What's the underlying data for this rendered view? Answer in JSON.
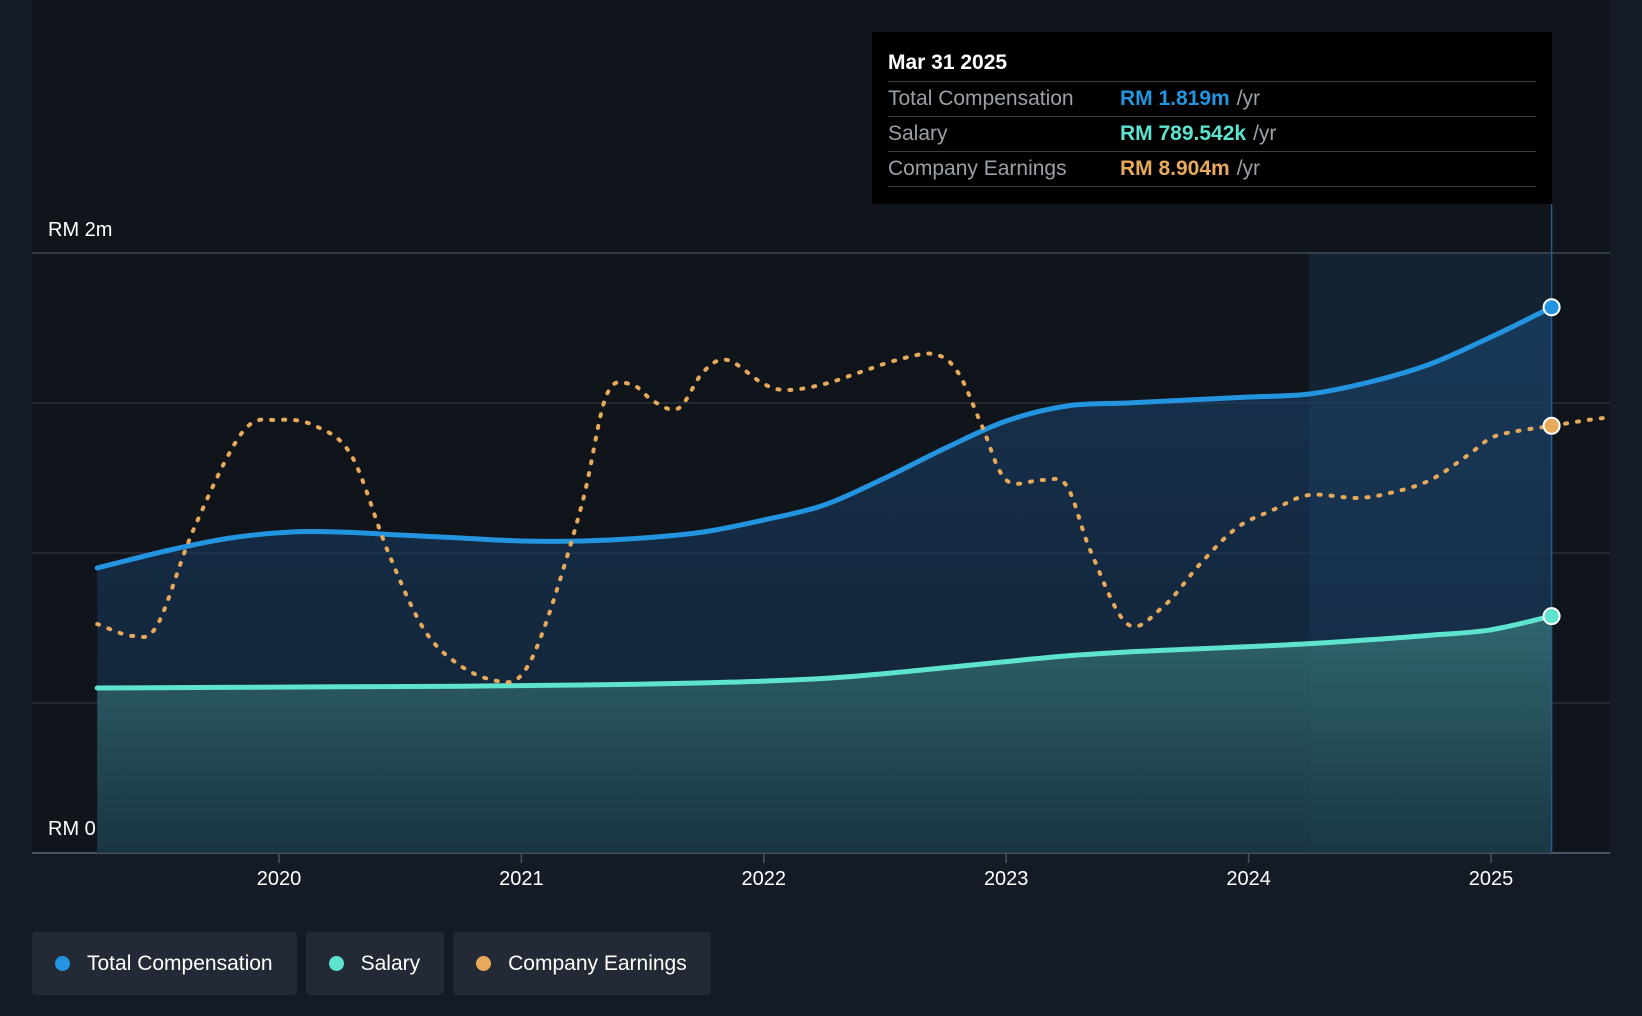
{
  "chart_data": {
    "type": "line",
    "title": "",
    "xlabel": "",
    "ylabel": "",
    "currency_prefix": "RM",
    "y_axis_labels": [
      "RM 2m",
      "RM 0"
    ],
    "ylim": [
      0,
      2.0
    ],
    "x_ticks": [
      2020,
      2021,
      2022,
      2023,
      2024,
      2025
    ],
    "xlim": [
      2019.25,
      2025.5
    ],
    "grid": true,
    "series": [
      {
        "name": "Total Compensation",
        "color": "#2394df",
        "style": "solid-area",
        "unit": "RM m",
        "x": [
          2019.25,
          2019.55,
          2019.8,
          2020.05,
          2020.25,
          2020.5,
          2020.75,
          2021.0,
          2021.25,
          2021.5,
          2021.75,
          2022.0,
          2022.25,
          2022.5,
          2022.75,
          2023.0,
          2023.25,
          2023.5,
          2023.75,
          2024.0,
          2024.25,
          2024.5,
          2024.75,
          2025.0,
          2025.25
        ],
        "values": [
          0.95,
          1.01,
          1.05,
          1.07,
          1.07,
          1.06,
          1.05,
          1.04,
          1.04,
          1.05,
          1.07,
          1.11,
          1.16,
          1.25,
          1.35,
          1.44,
          1.49,
          1.5,
          1.51,
          1.52,
          1.53,
          1.57,
          1.63,
          1.72,
          1.819
        ]
      },
      {
        "name": "Salary",
        "color": "#5ee3cf",
        "style": "solid-area",
        "unit": "RM k",
        "x": [
          2019.25,
          2019.75,
          2020.25,
          2020.75,
          2021.0,
          2021.25,
          2021.5,
          2021.75,
          2022.0,
          2022.25,
          2022.5,
          2022.75,
          2023.0,
          2023.25,
          2023.5,
          2023.75,
          2024.0,
          2024.25,
          2024.5,
          2024.75,
          2025.0,
          2025.25
        ],
        "values": [
          550,
          552,
          554,
          556,
          558,
          560,
          563,
          567,
          573,
          582,
          598,
          618,
          638,
          657,
          670,
          679,
          688,
          698,
          711,
          726,
          744,
          789.542
        ]
      },
      {
        "name": "Company Earnings",
        "color": "#e7a95a",
        "style": "dotted",
        "unit": "RM m",
        "x": [
          2019.25,
          2019.4,
          2019.5,
          2019.65,
          2019.85,
          2020.0,
          2020.15,
          2020.3,
          2020.45,
          2020.6,
          2020.75,
          2020.9,
          2021.0,
          2021.1,
          2021.25,
          2021.35,
          2021.45,
          2021.55,
          2021.65,
          2021.75,
          2021.85,
          2022.0,
          2022.1,
          2022.25,
          2022.4,
          2022.55,
          2022.7,
          2022.8,
          2022.9,
          2023.0,
          2023.15,
          2023.25,
          2023.35,
          2023.5,
          2023.65,
          2023.8,
          2023.95,
          2024.1,
          2024.25,
          2024.45,
          2024.6,
          2024.75,
          2024.9,
          2025.0,
          2025.1,
          2025.25,
          2025.4,
          2025.5
        ],
        "values": [
          5.6,
          5.4,
          5.6,
          7.2,
          8.8,
          9.0,
          8.9,
          8.4,
          6.8,
          5.5,
          4.9,
          4.65,
          4.75,
          5.6,
          7.6,
          9.4,
          9.6,
          9.3,
          9.2,
          9.8,
          10.0,
          9.6,
          9.5,
          9.6,
          9.8,
          10.0,
          10.1,
          9.8,
          8.9,
          8.0,
          8.0,
          7.9,
          6.8,
          5.6,
          5.9,
          6.6,
          7.2,
          7.5,
          7.75,
          7.7,
          7.8,
          8.0,
          8.4,
          8.7,
          8.81,
          8.904,
          9.0,
          9.05
        ]
      }
    ],
    "tooltip": {
      "date": "Mar 31 2025",
      "rows": [
        {
          "label": "Total Compensation",
          "value": "RM 1.819m",
          "unit": "/yr",
          "color": "#2394df"
        },
        {
          "label": "Salary",
          "value": "RM 789.542k",
          "unit": "/yr",
          "color": "#5ee3cf"
        },
        {
          "label": "Company Earnings",
          "value": "RM 8.904m",
          "unit": "/yr",
          "color": "#e7a95a"
        }
      ]
    },
    "highlight_start": 2024.25
  },
  "legend": [
    {
      "label": "Total Compensation",
      "color": "#2394df"
    },
    {
      "label": "Salary",
      "color": "#5ee3cf"
    },
    {
      "label": "Company Earnings",
      "color": "#e7a95a"
    }
  ]
}
